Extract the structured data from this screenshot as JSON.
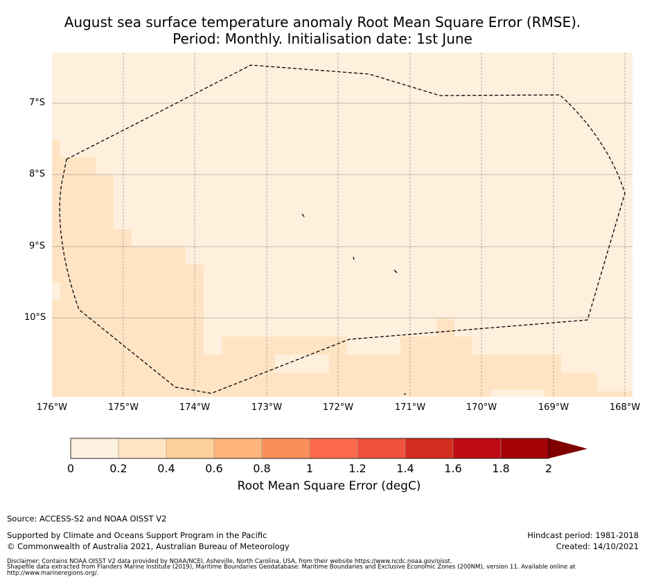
{
  "title": {
    "line1": "August sea surface temperature anomaly Root Mean Square Error (RMSE).",
    "line2": "Period: Monthly. Initialisation date: 1st June"
  },
  "map": {
    "lat_labels": [
      "7°S",
      "8°S",
      "9°S",
      "10°S"
    ],
    "lon_labels": [
      "176°W",
      "175°W",
      "174°W",
      "173°W",
      "172°W",
      "171°W",
      "170°W",
      "169°W",
      "168°W"
    ],
    "colors": {
      "c0": "#fff0de",
      "c1": "#ffe4c4",
      "boundary": "#000000",
      "grid": "#808080"
    }
  },
  "colorbar": {
    "ticks": [
      "0",
      "0.2",
      "0.4",
      "0.6",
      "0.8",
      "1",
      "1.2",
      "1.4",
      "1.6",
      "1.8",
      "2"
    ],
    "colors": [
      "#fff1e0",
      "#ffe3c2",
      "#fed09a",
      "#fdb57a",
      "#fc8f59",
      "#fb6a4a",
      "#f0513a",
      "#d42c1e",
      "#c10b14",
      "#a50006",
      "#800000"
    ],
    "label": "Root Mean Square Error (degC)"
  },
  "footer": {
    "source": "Source: ACCESS-S2 and NOAA OISST V2",
    "supported": "Supported by Climate and Oceans Support Program in the Pacific",
    "copyright": "© Commonwealth of Australia 2021, Australian Bureau of Meteorology",
    "hindcast": "Hindcast period: 1981-2018",
    "created": "Created: 14/10/2021",
    "disclaimer1": "Disclaimer: Contains NOAA OISST V2 data provided by NOAA/NCEI, Asheville, North Carolina, USA, from their website https://www.ncdc.noaa.gov/oisst.",
    "disclaimer2": "Shapefile data extracted from Flanders Marine Institute (2019), Maritime Boundaries Geodatabase: Maritime Boundaries and Exclusive Economic Zones (200NM), version 11. Available online at http://www.marineregions.org/."
  }
}
